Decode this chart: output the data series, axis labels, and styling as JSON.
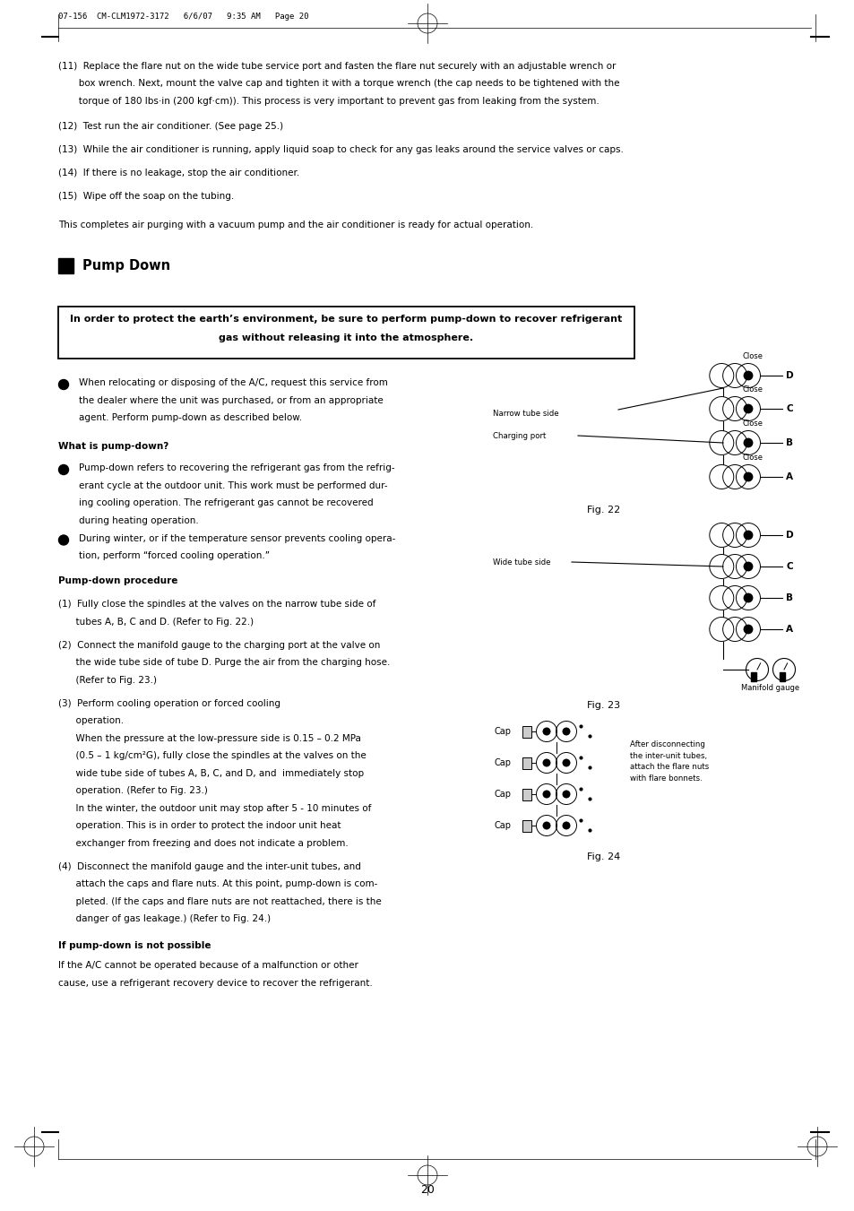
{
  "bg_color": "#ffffff",
  "text_color": "#000000",
  "page_width": 9.54,
  "page_height": 13.51,
  "header_text": "07-156  CM-CLM1972-3172   6/6/07   9:35 AM   Page 20",
  "page_number": "20",
  "title": "Pump Down",
  "warning_line1": "In order to protect the earth’s environment, be sure to perform pump-down to recover refrigerant",
  "warning_line2": "gas without releasing it into the atmosphere.",
  "item11_line1": "(11)  Replace the flare nut on the wide tube service port and fasten the flare nut securely with an adjustable wrench or",
  "item11_line2": "       box wrench. Next, mount the valve cap and tighten it with a torque wrench (the cap needs to be tightened with the",
  "item11_line3": "       torque of 180 lbs·in (200 kgf·cm)). This process is very important to prevent gas from leaking from the system.",
  "item12": "(12)  Test run the air conditioner. (See page 25.)",
  "item13": "(13)  While the air conditioner is running, apply liquid soap to check for any gas leaks around the service valves or caps.",
  "item14": "(14)  If there is no leakage, stop the air conditioner.",
  "item15": "(15)  Wipe off the soap on the tubing.",
  "summary": "This completes air purging with a vacuum pump and the air conditioner is ready for actual operation.",
  "bullet1_line1": "When relocating or disposing of the A/C, request this service from",
  "bullet1_line2": "the dealer where the unit was purchased, or from an appropriate",
  "bullet1_line3": "agent. Perform pump-down as described below.",
  "what_is_heading": "What is pump-down?",
  "what_bullet1_line1": "Pump-down refers to recovering the refrigerant gas from the refrig-",
  "what_bullet1_line2": "erant cycle at the outdoor unit. This work must be performed dur-",
  "what_bullet1_line3": "ing cooling operation. The refrigerant gas cannot be recovered",
  "what_bullet1_line4": "during heating operation.",
  "what_bullet2_line1": "During winter, or if the temperature sensor prevents cooling opera-",
  "what_bullet2_line2": "tion, perform “forced cooling operation.”",
  "procedure_heading": "Pump-down procedure",
  "proc1_line1": "(1)  Fully close the spindles at the valves on the narrow tube side of",
  "proc1_line2": "      tubes A, B, C and D. (Refer to Fig. 22.)",
  "proc2_line1": "(2)  Connect the manifold gauge to the charging port at the valve on",
  "proc2_line2": "      the wide tube side of tube D. Purge the air from the charging hose.",
  "proc2_line3": "      (Refer to Fig. 23.)",
  "proc3_line1": "(3)  Perform cooling operation or forced cooling",
  "proc3_line2": "      operation.",
  "proc3_line3": "      When the pressure at the low-pressure side is 0.15 – 0.2 MPa",
  "proc3_line4": "      (0.5 – 1 kg/cm²G), fully close the spindles at the valves on the",
  "proc3_line5": "      wide tube side of tubes A, B, C, and D, and  immediately stop",
  "proc3_line6": "      operation. (Refer to Fig. 23.)",
  "proc3_line7": "      In the winter, the outdoor unit may stop after 5 - 10 minutes of",
  "proc3_line8": "      operation. This is in order to protect the indoor unit heat",
  "proc3_line9": "      exchanger from freezing and does not indicate a problem.",
  "proc4_line1": "(4)  Disconnect the manifold gauge and the inter-unit tubes, and",
  "proc4_line2": "      attach the caps and flare nuts. At this point, pump-down is com-",
  "proc4_line3": "      pleted. (If the caps and flare nuts are not reattached, there is the",
  "proc4_line4": "      danger of gas leakage.) (Refer to Fig. 24.)",
  "if_heading": "If pump-down is not possible",
  "if_body_line1": "If the A/C cannot be operated because of a malfunction or other",
  "if_body_line2": "cause, use a refrigerant recovery device to recover the refrigerant.",
  "fig22_caption": "Fig. 22",
  "fig23_caption": "Fig. 23",
  "fig24_caption": "Fig. 24"
}
